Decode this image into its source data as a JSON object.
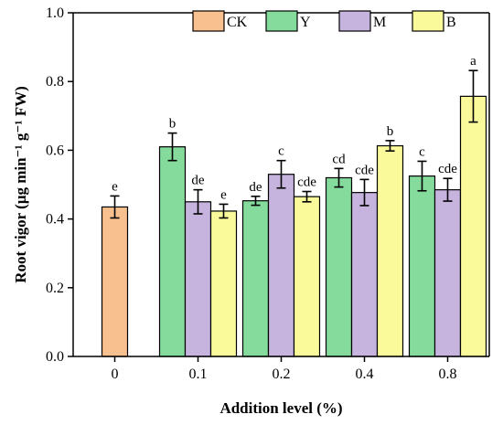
{
  "chart_data": {
    "type": "bar",
    "xlabel": "Addition level (%)",
    "ylabel": "Root vigor (μg min⁻¹ g⁻¹ FW)",
    "ylim": [
      0,
      1.0
    ],
    "yticks": [
      "0.0",
      "0.2",
      "0.4",
      "0.6",
      "0.8",
      "1.0"
    ],
    "ytick_values": [
      0,
      0.2,
      0.4,
      0.6,
      0.8,
      1.0
    ],
    "grid": false,
    "legend_position": "top-right",
    "categories": [
      "0",
      "0.1",
      "0.2",
      "0.4",
      "0.8"
    ],
    "series": [
      {
        "name": "CK",
        "color": "#F9C08F",
        "values": [
          0.435,
          null,
          null,
          null,
          null
        ],
        "errors": [
          0.032,
          null,
          null,
          null,
          null
        ],
        "labels": [
          "e",
          null,
          null,
          null,
          null
        ]
      },
      {
        "name": "Y",
        "color": "#84DB9C",
        "values": [
          null,
          0.61,
          0.453,
          0.52,
          0.525
        ],
        "errors": [
          null,
          0.04,
          0.013,
          0.027,
          0.043
        ],
        "labels": [
          null,
          "b",
          "de",
          "cd",
          "c"
        ]
      },
      {
        "name": "M",
        "color": "#C6B3DE",
        "values": [
          null,
          0.45,
          0.53,
          0.477,
          0.485
        ],
        "errors": [
          null,
          0.035,
          0.04,
          0.038,
          0.033
        ],
        "labels": [
          null,
          "de",
          "c",
          "cde",
          "cde"
        ]
      },
      {
        "name": "B",
        "color": "#FAFA9B",
        "values": [
          null,
          0.423,
          0.465,
          0.613,
          0.757
        ],
        "errors": [
          null,
          0.02,
          0.015,
          0.015,
          0.075
        ],
        "labels": [
          null,
          "e",
          "cde",
          "b",
          "a"
        ]
      }
    ]
  }
}
